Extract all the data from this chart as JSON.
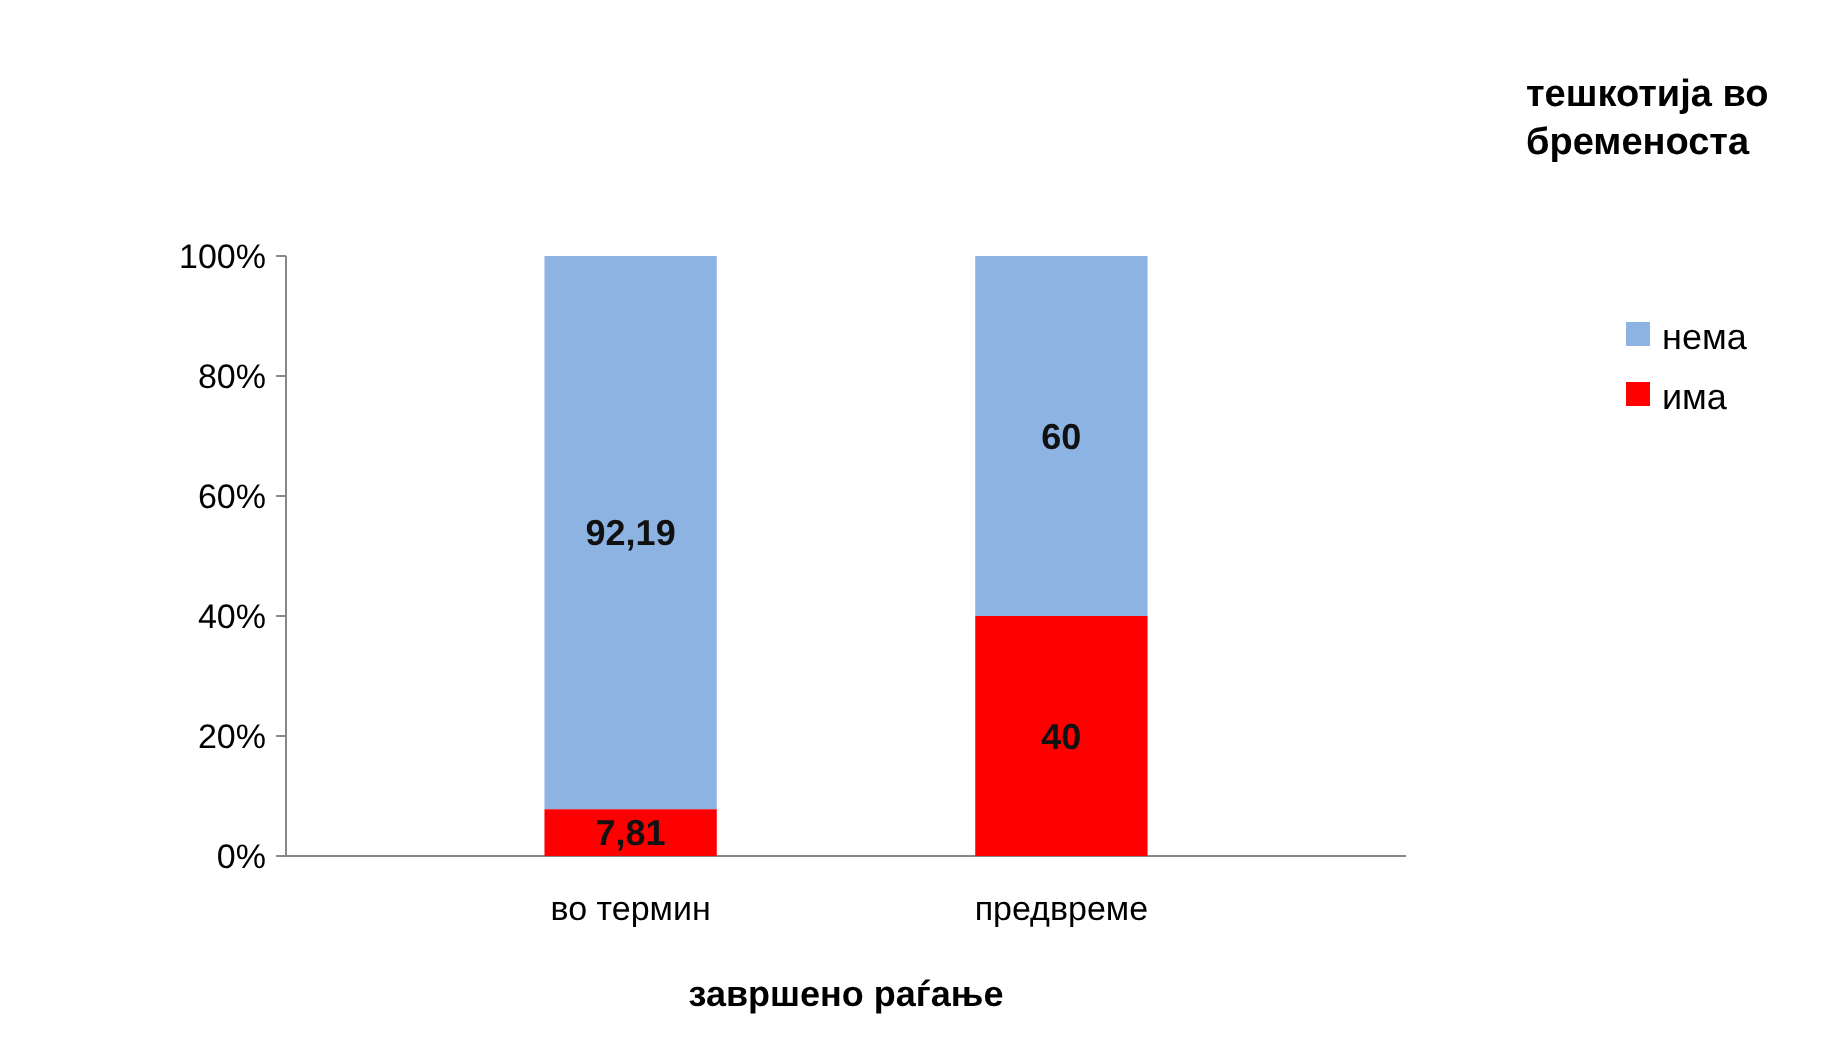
{
  "chart_data": {
    "type": "bar",
    "stacked": true,
    "categories": [
      "во термин",
      "предвреме"
    ],
    "series": [
      {
        "name": "има",
        "color": "#ff0000",
        "values": [
          7.81,
          40
        ],
        "value_labels": [
          "7,81",
          "40"
        ]
      },
      {
        "name": "нема",
        "color": "#8db3e2",
        "values": [
          92.19,
          60
        ],
        "value_labels": [
          "92,19",
          "60"
        ]
      }
    ],
    "ylim": [
      0,
      100
    ],
    "yticks": [
      {
        "value": 0,
        "label": "0%"
      },
      {
        "value": 20,
        "label": "20%"
      },
      {
        "value": 40,
        "label": "40%"
      },
      {
        "value": 60,
        "label": "60%"
      },
      {
        "value": 80,
        "label": "80%"
      },
      {
        "value": 100,
        "label": "100%"
      }
    ],
    "xlabel": "завршено раѓање",
    "legend_title": "тешкотија во бременоста",
    "legend": "right",
    "grid": false
  }
}
